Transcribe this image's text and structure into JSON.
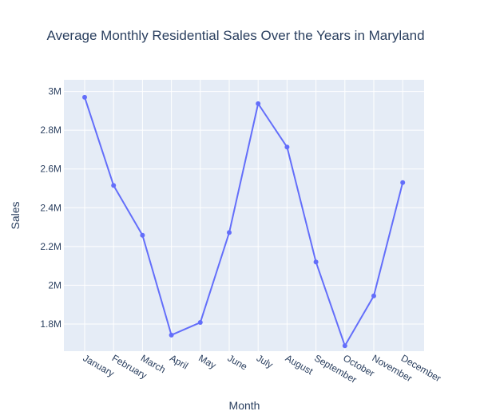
{
  "chart_data": {
    "type": "line",
    "title": "Average Monthly Residential Sales Over the Years in Maryland",
    "xlabel": "Month",
    "ylabel": "Sales",
    "categories": [
      "January",
      "February",
      "March",
      "April",
      "May",
      "June",
      "July",
      "August",
      "September",
      "October",
      "November",
      "December"
    ],
    "series": [
      {
        "values": [
          2970000,
          2515000,
          2258000,
          1743000,
          1808000,
          2272000,
          2937000,
          2713000,
          2120000,
          1688000,
          1945000,
          2530000
        ]
      }
    ],
    "ylim": [
      1660000,
      3060000
    ],
    "yticks": [
      1800000,
      2000000,
      2200000,
      2400000,
      2600000,
      2800000,
      3000000
    ],
    "ytick_labels": [
      "1.8M",
      "2M",
      "2.2M",
      "2.4M",
      "2.6M",
      "2.8M",
      "3M"
    ],
    "grid": true,
    "colors": {
      "line": "#636efa",
      "plot_bg": "#e5ecf6",
      "grid": "#ffffff",
      "text": "#2a3f5f"
    }
  }
}
